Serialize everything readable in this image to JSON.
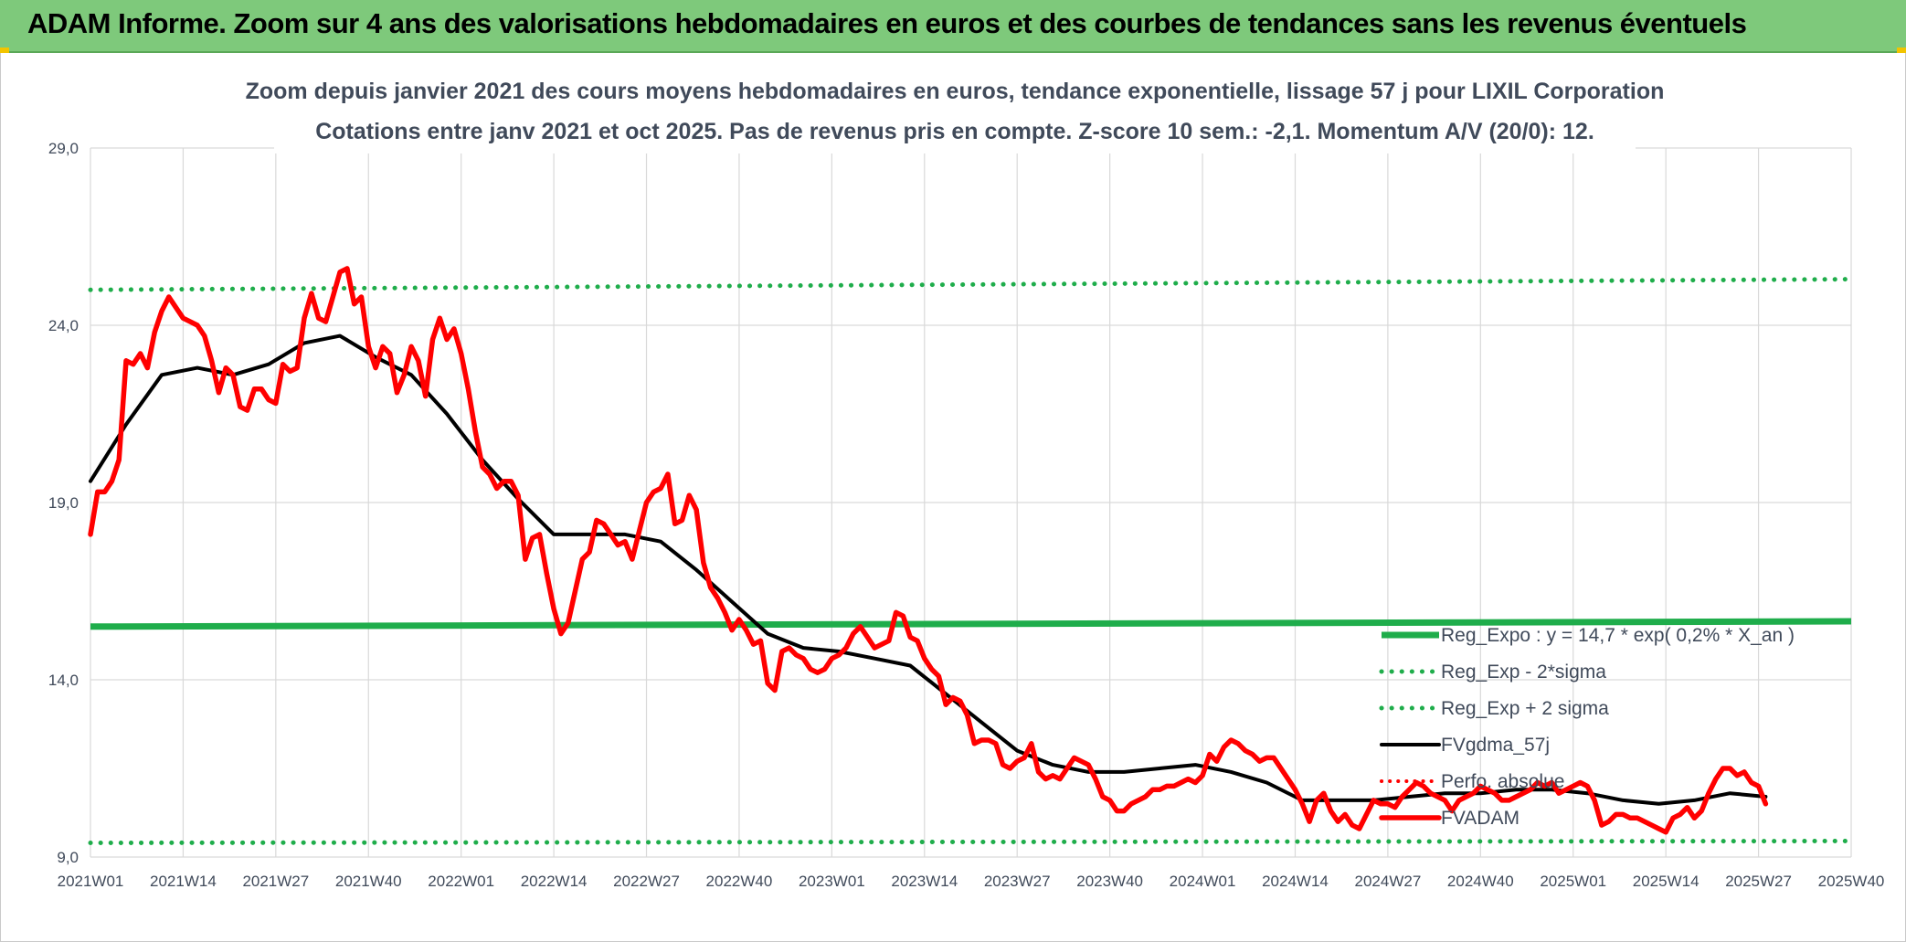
{
  "header": {
    "banner_title": "ADAM Informe. Zoom sur 4 ans des valorisations hebdomadaires en euros et des courbes de tendances sans les revenus éventuels"
  },
  "colors": {
    "banner": "#7ec97b",
    "fvadam": "#ff0000",
    "fvgdma": "#000000",
    "regression": "#1fad4b",
    "grid": "#d9d9d9",
    "text": "#404a5a"
  },
  "chart_data": {
    "type": "line",
    "title_line1": "Zoom depuis janvier 2021 des cours moyens hebdomadaires en euros, tendance exponentielle, lissage 57 j pour LIXIL Corporation",
    "title_line2": "Cotations entre janv 2021 et oct 2025. Pas de revenus pris en compte. Z-score 10 sem.: -2,1. Momentum A/V (20/0): 12.",
    "x_ticks": [
      "2021W01",
      "2021W14",
      "2021W27",
      "2021W40",
      "2022W01",
      "2022W14",
      "2022W27",
      "2022W40",
      "2023W01",
      "2023W14",
      "2023W27",
      "2023W40",
      "2024W01",
      "2024W14",
      "2024W27",
      "2024W40",
      "2025W01",
      "2025W14",
      "2025W27",
      "2025W40"
    ],
    "y_ticks": [
      "9,0",
      "14,0",
      "19,0",
      "24,0",
      "29,0"
    ],
    "y_tick_values": [
      9,
      14,
      19,
      24,
      29
    ],
    "ylim": [
      9,
      29
    ],
    "xlim": [
      0,
      247
    ],
    "grid": true,
    "legend_position": "right",
    "legend": [
      "Reg_Expo : y = 14,7 * exp( 0,2% * X_an )",
      "Reg_Exp - 2*sigma",
      "Reg_Exp + 2 sigma",
      "FVgdma_57j",
      "Perfo. absolue",
      "FVADAM"
    ],
    "series": [
      {
        "name": "FVADAM",
        "color": "#ff0000",
        "style": "solid",
        "points": [
          [
            0,
            18.1
          ],
          [
            1,
            19.3
          ],
          [
            2,
            19.3
          ],
          [
            3,
            19.6
          ],
          [
            4,
            20.2
          ],
          [
            5,
            23.0
          ],
          [
            6,
            22.9
          ],
          [
            7,
            23.2
          ],
          [
            8,
            22.8
          ],
          [
            9,
            23.8
          ],
          [
            10,
            24.4
          ],
          [
            11,
            24.8
          ],
          [
            12,
            24.5
          ],
          [
            13,
            24.2
          ],
          [
            14,
            24.1
          ],
          [
            15,
            24.0
          ],
          [
            16,
            23.7
          ],
          [
            17,
            23.0
          ],
          [
            18,
            22.1
          ],
          [
            19,
            22.8
          ],
          [
            20,
            22.6
          ],
          [
            21,
            21.7
          ],
          [
            22,
            21.6
          ],
          [
            23,
            22.2
          ],
          [
            24,
            22.2
          ],
          [
            25,
            21.9
          ],
          [
            26,
            21.8
          ],
          [
            27,
            22.9
          ],
          [
            28,
            22.7
          ],
          [
            29,
            22.8
          ],
          [
            30,
            24.2
          ],
          [
            31,
            24.9
          ],
          [
            32,
            24.2
          ],
          [
            33,
            24.1
          ],
          [
            34,
            24.8
          ],
          [
            35,
            25.5
          ],
          [
            36,
            25.6
          ],
          [
            37,
            24.6
          ],
          [
            38,
            24.8
          ],
          [
            39,
            23.4
          ],
          [
            40,
            22.8
          ],
          [
            41,
            23.4
          ],
          [
            42,
            23.2
          ],
          [
            43,
            22.1
          ],
          [
            44,
            22.6
          ],
          [
            45,
            23.4
          ],
          [
            46,
            23.0
          ],
          [
            47,
            22.0
          ],
          [
            48,
            23.6
          ],
          [
            49,
            24.2
          ],
          [
            50,
            23.6
          ],
          [
            51,
            23.9
          ],
          [
            52,
            23.2
          ],
          [
            53,
            22.2
          ],
          [
            54,
            21.0
          ],
          [
            55,
            20.0
          ],
          [
            56,
            19.8
          ],
          [
            57,
            19.4
          ],
          [
            58,
            19.6
          ],
          [
            59,
            19.6
          ],
          [
            60,
            19.2
          ],
          [
            61,
            17.4
          ],
          [
            62,
            18.0
          ],
          [
            63,
            18.1
          ],
          [
            64,
            17.0
          ],
          [
            65,
            16.0
          ],
          [
            66,
            15.3
          ],
          [
            67,
            15.6
          ],
          [
            68,
            16.5
          ],
          [
            69,
            17.4
          ],
          [
            70,
            17.6
          ],
          [
            71,
            18.5
          ],
          [
            72,
            18.4
          ],
          [
            73,
            18.1
          ],
          [
            74,
            17.8
          ],
          [
            75,
            17.9
          ],
          [
            76,
            17.4
          ],
          [
            77,
            18.2
          ],
          [
            78,
            19.0
          ],
          [
            79,
            19.3
          ],
          [
            80,
            19.4
          ],
          [
            81,
            19.8
          ],
          [
            82,
            18.4
          ],
          [
            83,
            18.5
          ],
          [
            84,
            19.2
          ],
          [
            85,
            18.8
          ],
          [
            86,
            17.3
          ],
          [
            87,
            16.6
          ],
          [
            88,
            16.3
          ],
          [
            89,
            15.9
          ],
          [
            90,
            15.4
          ],
          [
            91,
            15.7
          ],
          [
            92,
            15.4
          ],
          [
            93,
            15.0
          ],
          [
            94,
            15.1
          ],
          [
            95,
            13.9
          ],
          [
            96,
            13.7
          ],
          [
            97,
            14.8
          ],
          [
            98,
            14.9
          ],
          [
            99,
            14.7
          ],
          [
            100,
            14.6
          ],
          [
            101,
            14.3
          ],
          [
            102,
            14.2
          ],
          [
            103,
            14.3
          ],
          [
            104,
            14.6
          ],
          [
            105,
            14.7
          ],
          [
            106,
            14.9
          ],
          [
            107,
            15.3
          ],
          [
            108,
            15.5
          ],
          [
            109,
            15.2
          ],
          [
            110,
            14.9
          ],
          [
            111,
            15.0
          ],
          [
            112,
            15.1
          ],
          [
            113,
            15.9
          ],
          [
            114,
            15.8
          ],
          [
            115,
            15.2
          ],
          [
            116,
            15.1
          ],
          [
            117,
            14.6
          ],
          [
            118,
            14.3
          ],
          [
            119,
            14.1
          ],
          [
            120,
            13.3
          ],
          [
            121,
            13.5
          ],
          [
            122,
            13.4
          ],
          [
            123,
            13.0
          ],
          [
            124,
            12.2
          ],
          [
            125,
            12.3
          ],
          [
            126,
            12.3
          ],
          [
            127,
            12.2
          ],
          [
            128,
            11.6
          ],
          [
            129,
            11.5
          ],
          [
            130,
            11.7
          ],
          [
            131,
            11.8
          ],
          [
            132,
            12.2
          ],
          [
            133,
            11.4
          ],
          [
            134,
            11.2
          ],
          [
            135,
            11.3
          ],
          [
            136,
            11.2
          ],
          [
            137,
            11.5
          ],
          [
            138,
            11.8
          ],
          [
            139,
            11.7
          ],
          [
            140,
            11.6
          ],
          [
            141,
            11.2
          ],
          [
            142,
            10.7
          ],
          [
            143,
            10.6
          ],
          [
            144,
            10.3
          ],
          [
            145,
            10.3
          ],
          [
            146,
            10.5
          ],
          [
            147,
            10.6
          ],
          [
            148,
            10.7
          ],
          [
            149,
            10.9
          ],
          [
            150,
            10.9
          ],
          [
            151,
            11.0
          ],
          [
            152,
            11.0
          ],
          [
            153,
            11.1
          ],
          [
            154,
            11.2
          ],
          [
            155,
            11.1
          ],
          [
            156,
            11.3
          ],
          [
            157,
            11.9
          ],
          [
            158,
            11.7
          ],
          [
            159,
            12.1
          ],
          [
            160,
            12.3
          ],
          [
            161,
            12.2
          ],
          [
            162,
            12.0
          ],
          [
            163,
            11.9
          ],
          [
            164,
            11.7
          ],
          [
            165,
            11.8
          ],
          [
            166,
            11.8
          ],
          [
            167,
            11.5
          ],
          [
            168,
            11.2
          ],
          [
            169,
            10.9
          ],
          [
            170,
            10.5
          ],
          [
            171,
            10.0
          ],
          [
            172,
            10.6
          ],
          [
            173,
            10.8
          ],
          [
            174,
            10.3
          ],
          [
            175,
            10.0
          ],
          [
            176,
            10.2
          ],
          [
            177,
            9.9
          ],
          [
            178,
            9.8
          ],
          [
            179,
            10.2
          ],
          [
            180,
            10.6
          ],
          [
            181,
            10.5
          ],
          [
            182,
            10.5
          ],
          [
            183,
            10.4
          ],
          [
            184,
            10.7
          ],
          [
            185,
            10.9
          ],
          [
            186,
            11.1
          ],
          [
            187,
            11.0
          ],
          [
            188,
            10.8
          ],
          [
            189,
            10.7
          ],
          [
            190,
            10.6
          ],
          [
            191,
            10.3
          ],
          [
            192,
            10.6
          ],
          [
            193,
            10.7
          ],
          [
            194,
            10.8
          ],
          [
            195,
            11.0
          ],
          [
            196,
            10.9
          ],
          [
            197,
            10.8
          ],
          [
            198,
            10.6
          ],
          [
            199,
            10.6
          ],
          [
            200,
            10.7
          ],
          [
            201,
            10.8
          ],
          [
            202,
            10.9
          ],
          [
            203,
            11.1
          ],
          [
            204,
            11.0
          ],
          [
            205,
            11.1
          ],
          [
            206,
            10.8
          ],
          [
            207,
            10.9
          ],
          [
            208,
            11.0
          ],
          [
            209,
            11.1
          ],
          [
            210,
            11.0
          ],
          [
            211,
            10.6
          ],
          [
            212,
            9.9
          ],
          [
            213,
            10.0
          ],
          [
            214,
            10.2
          ],
          [
            215,
            10.2
          ],
          [
            216,
            10.1
          ],
          [
            217,
            10.1
          ],
          [
            218,
            10.0
          ],
          [
            219,
            9.9
          ],
          [
            220,
            9.8
          ],
          [
            221,
            9.7
          ],
          [
            222,
            10.1
          ],
          [
            223,
            10.2
          ],
          [
            224,
            10.4
          ],
          [
            225,
            10.1
          ],
          [
            226,
            10.3
          ],
          [
            227,
            10.8
          ],
          [
            228,
            11.2
          ],
          [
            229,
            11.5
          ],
          [
            230,
            11.5
          ],
          [
            231,
            11.3
          ],
          [
            232,
            11.4
          ],
          [
            233,
            11.1
          ],
          [
            234,
            11.0
          ],
          [
            235,
            10.5
          ]
        ]
      },
      {
        "name": "FVgdma_57j",
        "color": "#000000",
        "style": "solid",
        "points": [
          [
            0,
            19.6
          ],
          [
            5,
            21.2
          ],
          [
            10,
            22.6
          ],
          [
            15,
            22.8
          ],
          [
            20,
            22.6
          ],
          [
            25,
            22.9
          ],
          [
            30,
            23.5
          ],
          [
            35,
            23.7
          ],
          [
            40,
            23.1
          ],
          [
            45,
            22.6
          ],
          [
            50,
            21.5
          ],
          [
            55,
            20.2
          ],
          [
            60,
            19.1
          ],
          [
            65,
            18.1
          ],
          [
            70,
            18.1
          ],
          [
            75,
            18.1
          ],
          [
            80,
            17.9
          ],
          [
            85,
            17.1
          ],
          [
            90,
            16.2
          ],
          [
            95,
            15.3
          ],
          [
            100,
            14.9
          ],
          [
            105,
            14.8
          ],
          [
            110,
            14.6
          ],
          [
            115,
            14.4
          ],
          [
            120,
            13.6
          ],
          [
            125,
            12.8
          ],
          [
            130,
            12.0
          ],
          [
            135,
            11.6
          ],
          [
            140,
            11.4
          ],
          [
            145,
            11.4
          ],
          [
            150,
            11.5
          ],
          [
            155,
            11.6
          ],
          [
            160,
            11.4
          ],
          [
            165,
            11.1
          ],
          [
            170,
            10.6
          ],
          [
            175,
            10.6
          ],
          [
            180,
            10.6
          ],
          [
            185,
            10.7
          ],
          [
            190,
            10.8
          ],
          [
            195,
            10.8
          ],
          [
            200,
            10.9
          ],
          [
            205,
            10.9
          ],
          [
            210,
            10.8
          ],
          [
            215,
            10.6
          ],
          [
            220,
            10.5
          ],
          [
            225,
            10.6
          ],
          [
            230,
            10.8
          ],
          [
            235,
            10.7
          ]
        ]
      },
      {
        "name": "Reg_Expo : y = 14,7 * exp( 0,2% * X_an )",
        "color": "#1fad4b",
        "style": "solid",
        "points": [
          [
            0,
            15.5
          ],
          [
            247,
            15.65
          ]
        ]
      },
      {
        "name": "Reg_Exp - 2*sigma",
        "color": "#1fad4b",
        "style": "dotted",
        "points": [
          [
            0,
            9.4
          ],
          [
            247,
            9.45
          ]
        ]
      },
      {
        "name": "Reg_Exp + 2 sigma",
        "color": "#1fad4b",
        "style": "dotted",
        "points": [
          [
            0,
            25.0
          ],
          [
            247,
            25.3
          ]
        ]
      },
      {
        "name": "Perfo. absolue",
        "color": "#ff0000",
        "style": "dotted",
        "points": []
      }
    ]
  }
}
